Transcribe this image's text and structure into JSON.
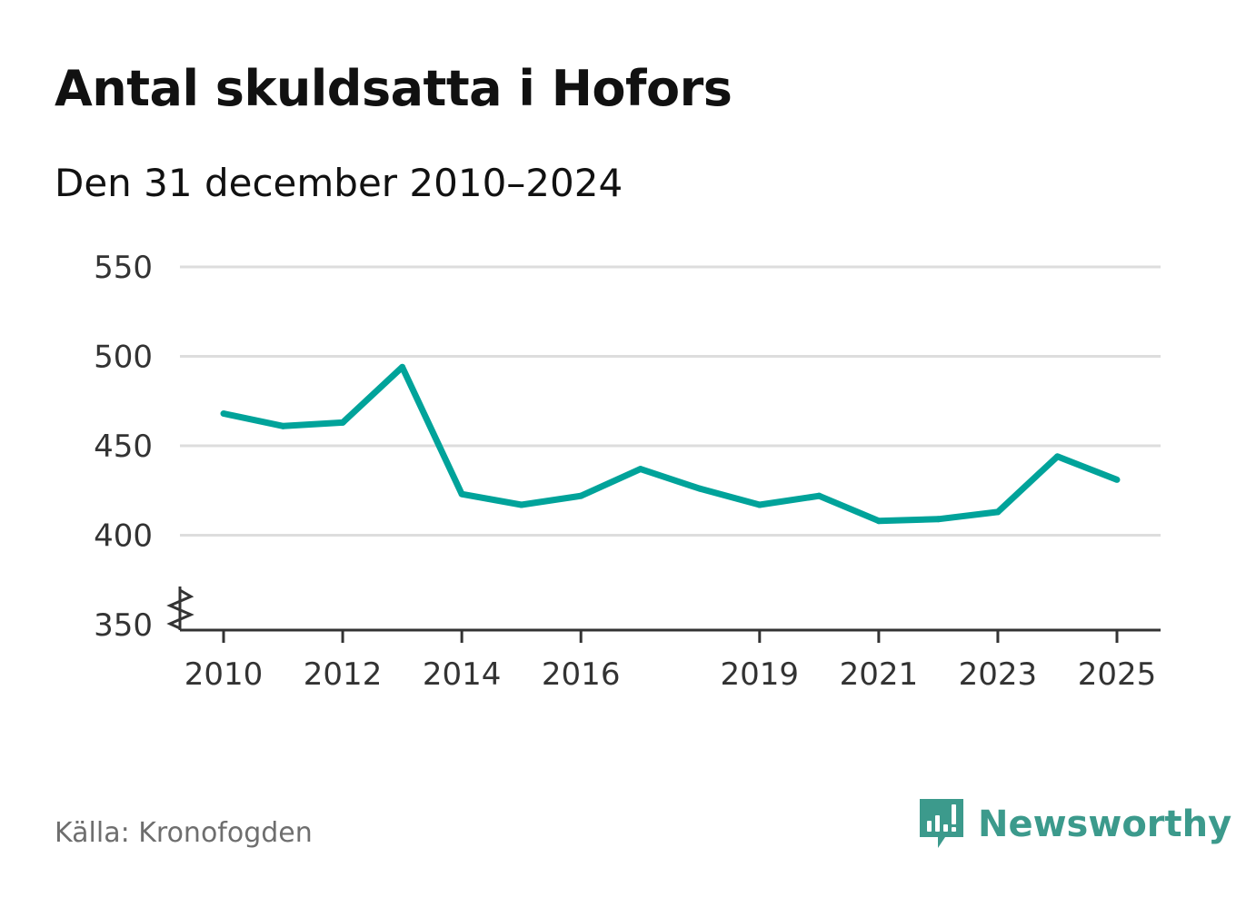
{
  "title": "Antal skuldsatta i Hofors",
  "subtitle": "Den 31 december 2010–2024",
  "source": "Källa: Kronofogden",
  "brand": {
    "name": "Newsworthy",
    "icon": "newsworthy-logo-icon",
    "color": "#3c9a8c"
  },
  "colors": {
    "line": "#00a39a",
    "grid": "#dddddd",
    "axis": "#333333"
  },
  "chart_data": {
    "type": "line",
    "title": "Antal skuldsatta i Hofors",
    "subtitle": "Den 31 december 2010–2024",
    "xlabel": "",
    "ylabel": "",
    "x": [
      2010,
      2011,
      2012,
      2013,
      2014,
      2015,
      2016,
      2017,
      2018,
      2019,
      2020,
      2021,
      2022,
      2023,
      2024,
      2025
    ],
    "series": [
      {
        "name": "Antal skuldsatta",
        "values": [
          468,
          461,
          463,
          494,
          423,
          417,
          422,
          437,
          426,
          417,
          422,
          408,
          409,
          413,
          444,
          431
        ]
      }
    ],
    "ylim": [
      350,
      550
    ],
    "y_ticks": [
      350,
      400,
      450,
      500,
      550
    ],
    "x_ticks": [
      2010,
      2012,
      2014,
      2016,
      2019,
      2021,
      2023,
      2025
    ],
    "grid": true,
    "axis_break": true
  }
}
